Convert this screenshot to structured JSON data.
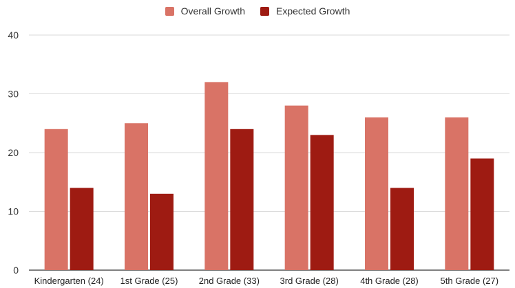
{
  "colors": {
    "overall": "#d97366",
    "expected": "#9e1b12",
    "grid": "#d9d9d9",
    "axis": "#333333"
  },
  "chart_data": {
    "type": "bar",
    "categories": [
      "Kindergarten (24)",
      "1st Grade (25)",
      "2nd Grade (33)",
      "3rd Grade (28)",
      "4th Grade (28)",
      "5th Grade (27)"
    ],
    "series": [
      {
        "name": "Overall Growth",
        "values": [
          24,
          25,
          32,
          28,
          26,
          26
        ]
      },
      {
        "name": "Expected Growth",
        "values": [
          14,
          13,
          24,
          23,
          14,
          19
        ]
      }
    ],
    "ylim": [
      0,
      40
    ],
    "yticks": [
      0,
      10,
      20,
      30,
      40
    ],
    "grid": true,
    "legend": "top-center"
  }
}
